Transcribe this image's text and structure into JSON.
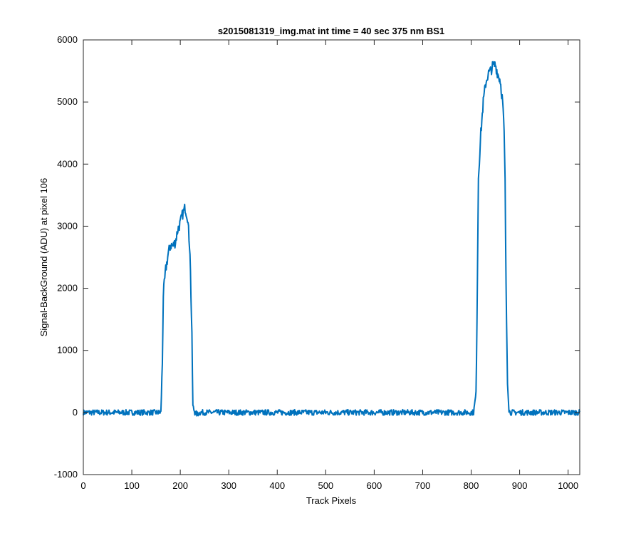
{
  "chart_data": {
    "type": "line",
    "title": "s2015081319_img.mat int time = 40 sec  375 nm BS1",
    "xlabel": "Track Pixels",
    "ylabel": "Signal-BackGround (ADU) at pixel 106",
    "xlim": [
      0,
      1024
    ],
    "ylim": [
      -1000,
      6000
    ],
    "xticks": [
      0,
      100,
      200,
      300,
      400,
      500,
      600,
      700,
      800,
      900,
      1000
    ],
    "yticks": [
      -1000,
      0,
      1000,
      2000,
      3000,
      4000,
      5000,
      6000
    ],
    "grid": false,
    "legend": "none",
    "line_color": "#0072BD",
    "series": [
      {
        "x": [
          0,
          160,
          163,
          165,
          170,
          175,
          180,
          185,
          190,
          195,
          200,
          205,
          210,
          215,
          220,
          224,
          226,
          230,
          235,
          240,
          300,
          400,
          500,
          600,
          700,
          805,
          810,
          812,
          815,
          820,
          825,
          830,
          835,
          840,
          845,
          850,
          855,
          860,
          865,
          868,
          870,
          872,
          875,
          878,
          880,
          900,
          1000,
          1024
        ],
        "y": [
          0,
          0,
          800,
          1900,
          2300,
          2550,
          2700,
          2680,
          2750,
          2950,
          3050,
          3200,
          3300,
          3150,
          2600,
          1200,
          100,
          0,
          -30,
          0,
          0,
          0,
          0,
          0,
          0,
          0,
          300,
          1500,
          3800,
          4500,
          5000,
          5300,
          5450,
          5500,
          5580,
          5600,
          5450,
          5350,
          5000,
          4500,
          3700,
          2000,
          500,
          50,
          0,
          0,
          0,
          0
        ]
      }
    ]
  }
}
